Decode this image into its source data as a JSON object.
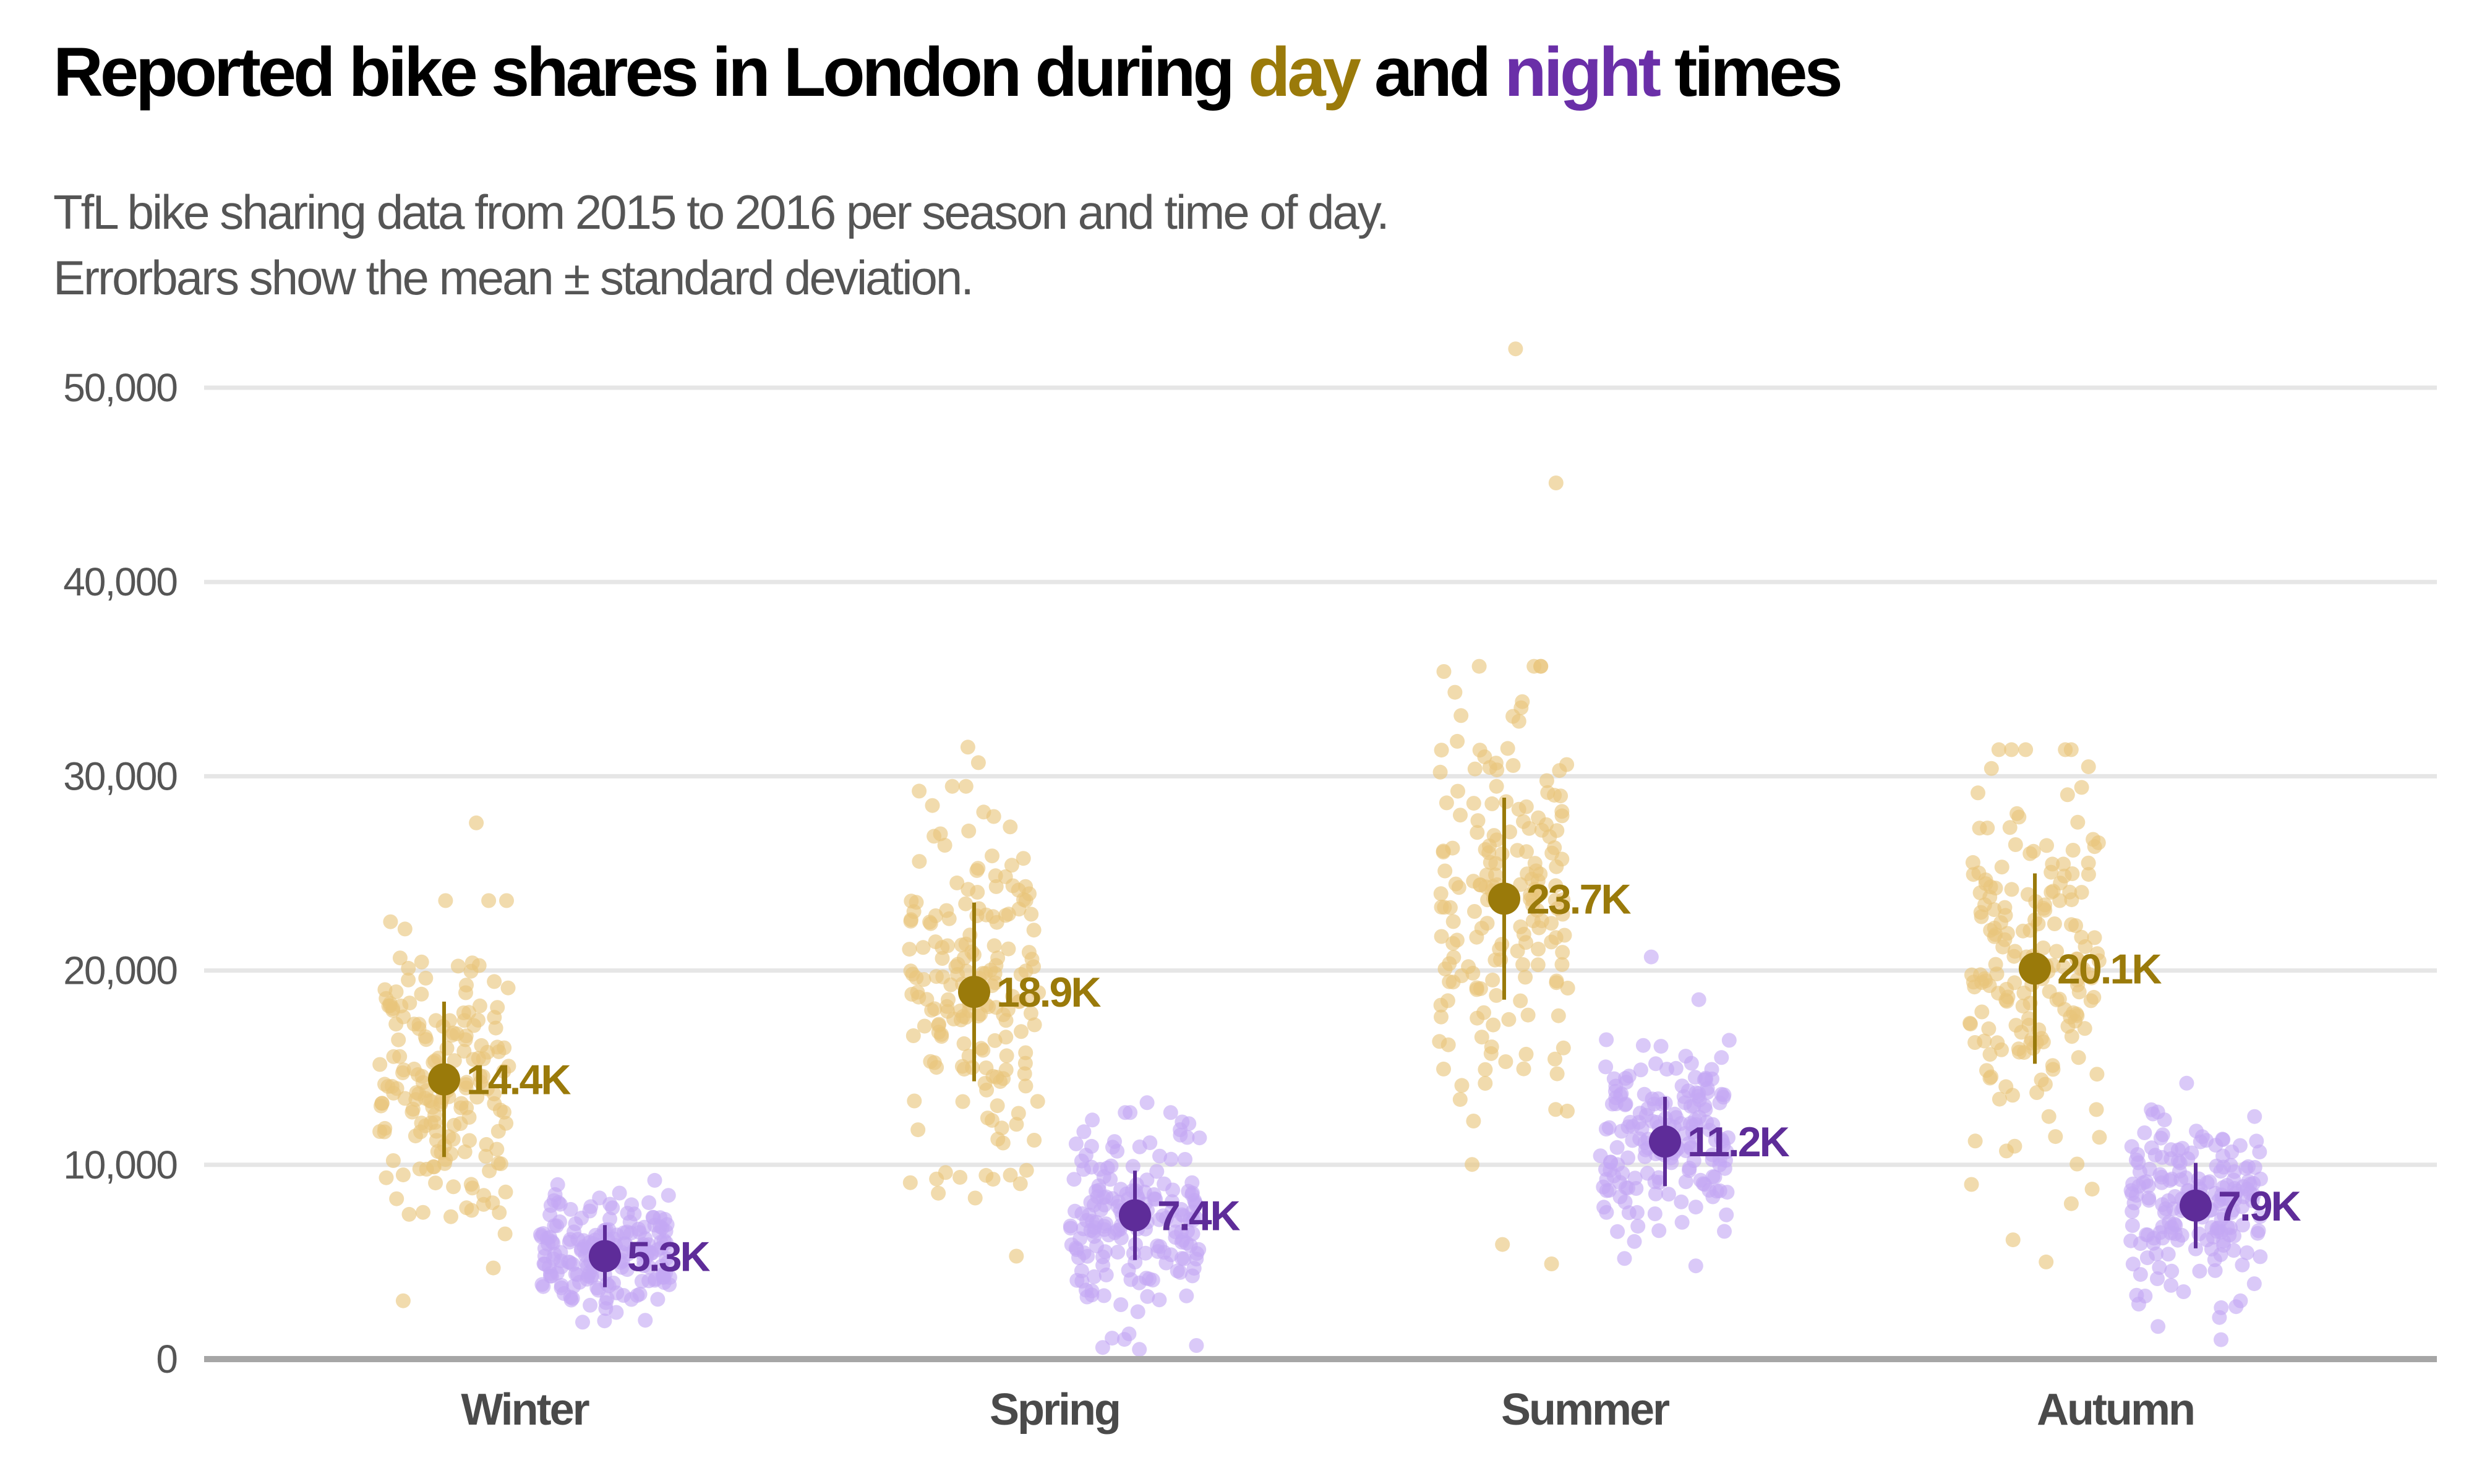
{
  "title": {
    "prefix": "Reported bike shares in London during ",
    "day_word": "day",
    "middle": " and ",
    "night_word": "night",
    "suffix": " times"
  },
  "subtitle": {
    "line1": "TfL bike sharing data from 2015 to 2016 per season and time of day.",
    "line2": "Errorbars show the mean ± standard deviation."
  },
  "colors": {
    "day_point": "#E8C57A",
    "day_mean": "#9A7A0A",
    "night_point": "#C4A8F4",
    "night_mean": "#5E2C99",
    "grid": "#E6E6E6",
    "baseline": "#A6A6A6"
  },
  "chart_data": {
    "type": "scatter",
    "subtype": "jittered strip plot with mean and standard deviation errorbars",
    "categories": [
      "Winter",
      "Spring",
      "Summer",
      "Autumn"
    ],
    "y_ticks": [
      "0",
      "10,000",
      "20,000",
      "30,000",
      "40,000",
      "50,000"
    ],
    "y_tick_values": [
      0,
      10000,
      20000,
      30000,
      40000,
      50000
    ],
    "ylim": [
      0,
      52000
    ],
    "grid": true,
    "series": [
      {
        "name": "day",
        "mean": [
          14400,
          18900,
          23700,
          20100
        ],
        "sd": [
          4000,
          4600,
          5200,
          4900
        ],
        "labels": [
          "14.4K",
          "18.9K",
          "23.7K",
          "20.1K"
        ],
        "points_per_category": 180,
        "outliers": [
          {
            "category": "Winter",
            "value": 27600
          },
          {
            "category": "Winter",
            "value": 3000
          },
          {
            "category": "Spring",
            "value": 31500
          },
          {
            "category": "Spring",
            "value": 30700
          },
          {
            "category": "Spring",
            "value": 5300
          },
          {
            "category": "Summer",
            "value": 52000
          },
          {
            "category": "Summer",
            "value": 45100
          },
          {
            "category": "Summer",
            "value": 4900
          },
          {
            "category": "Summer",
            "value": 5900
          },
          {
            "category": "Autumn",
            "value": 30400
          },
          {
            "category": "Autumn",
            "value": 5000
          },
          {
            "category": "Autumn",
            "value": 8000
          }
        ]
      },
      {
        "name": "night",
        "mean": [
          5300,
          7400,
          11200,
          7900
        ],
        "sd": [
          1600,
          2300,
          2300,
          2200
        ],
        "labels": [
          "5.3K",
          "7.4K",
          "11.2K",
          "7.9K"
        ],
        "points_per_category": 180,
        "outliers": [
          {
            "category": "Winter",
            "value": 9200
          },
          {
            "category": "Winter",
            "value": 2000
          },
          {
            "category": "Spring",
            "value": 13200
          },
          {
            "category": "Spring",
            "value": 1300
          },
          {
            "category": "Summer",
            "value": 20700
          },
          {
            "category": "Summer",
            "value": 18500
          },
          {
            "category": "Summer",
            "value": 4800
          },
          {
            "category": "Autumn",
            "value": 14200
          },
          {
            "category": "Autumn",
            "value": 1000
          },
          {
            "category": "Autumn",
            "value": 2700
          }
        ]
      }
    ]
  }
}
